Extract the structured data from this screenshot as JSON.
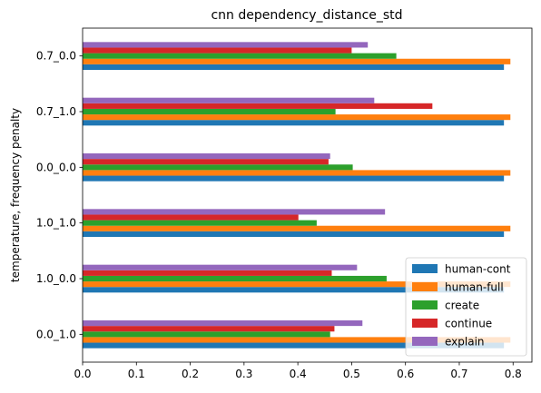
{
  "chart_data": {
    "type": "bar",
    "orientation": "horizontal",
    "title": "cnn dependency_distance_std",
    "xlabel": "",
    "ylabel": "temperature, frequency penalty",
    "xlim": [
      0,
      0.835
    ],
    "xticks": [
      "0.0",
      "0.1",
      "0.2",
      "0.3",
      "0.4",
      "0.5",
      "0.6",
      "0.7",
      "0.8"
    ],
    "categories": [
      "0.0_1.0",
      "1.0_0.0",
      "1.0_1.0",
      "0.0_0.0",
      "0.7_1.0",
      "0.7_0.0"
    ],
    "grid": false,
    "legend_position": "lower-right",
    "series": [
      {
        "name": "human-cont",
        "color": "#1f77b4",
        "values": [
          0.783,
          0.783,
          0.783,
          0.783,
          0.783,
          0.783
        ]
      },
      {
        "name": "human-full",
        "color": "#ff7f0e",
        "values": [
          0.795,
          0.795,
          0.795,
          0.795,
          0.795,
          0.795
        ]
      },
      {
        "name": "create",
        "color": "#2ca02c",
        "values": [
          0.46,
          0.565,
          0.435,
          0.502,
          0.47,
          0.583
        ]
      },
      {
        "name": "continue",
        "color": "#d62728",
        "values": [
          0.468,
          0.463,
          0.401,
          0.457,
          0.65,
          0.5
        ]
      },
      {
        "name": "explain",
        "color": "#9467bd",
        "values": [
          0.52,
          0.51,
          0.562,
          0.46,
          0.542,
          0.53
        ]
      }
    ]
  }
}
